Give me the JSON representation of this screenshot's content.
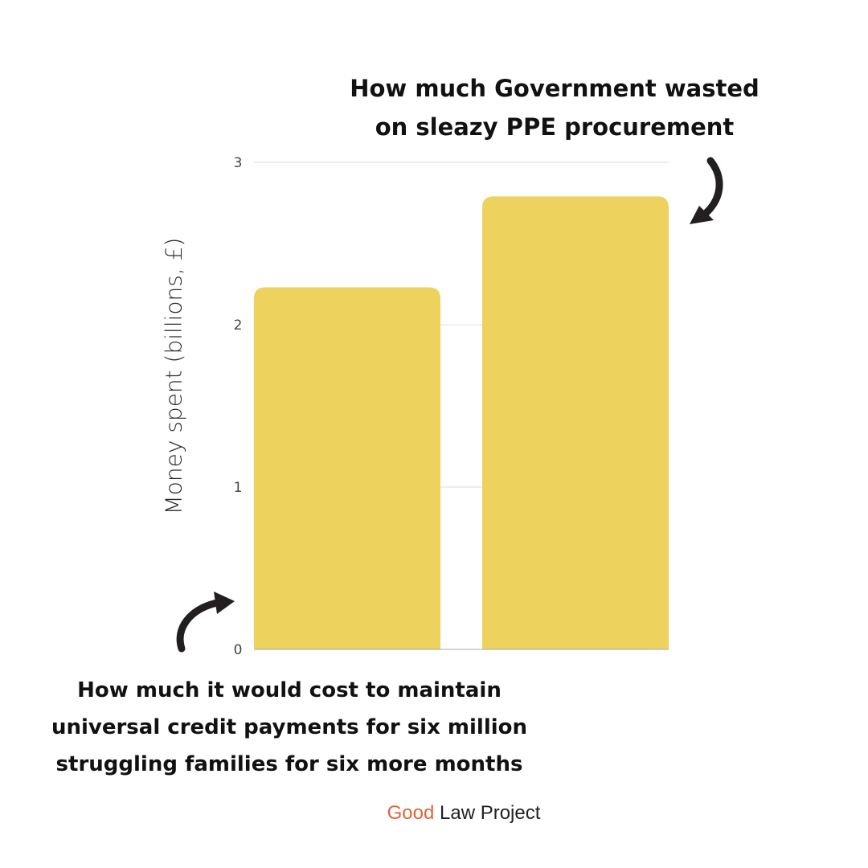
{
  "chart_data": {
    "type": "bar",
    "categories": [
      "",
      ""
    ],
    "values": [
      2.23,
      2.79
    ],
    "ylabel": "Money spent (billions, £)",
    "xlabel": "",
    "ylim": [
      0,
      3
    ],
    "yticks": [
      0,
      1,
      2,
      3
    ],
    "grid": true,
    "annotations": {
      "top_lines": [
        "How much Government wasted",
        "on sleazy PPE procurement"
      ],
      "bottom_lines": [
        "How much it would cost to maintain",
        "universal credit payments for six million",
        "struggling families for six more months"
      ]
    }
  },
  "brand": {
    "first_word": "Good",
    "rest": "Law Project"
  },
  "colors": {
    "bar": "#edd25e",
    "grid": "#dddddd",
    "axis": "#aaaaaa",
    "tick_text": "#444444",
    "arrow": "#231f20",
    "annotation_text": "#111111",
    "brand_accent": "#e0643a",
    "brand_text": "#222222"
  }
}
